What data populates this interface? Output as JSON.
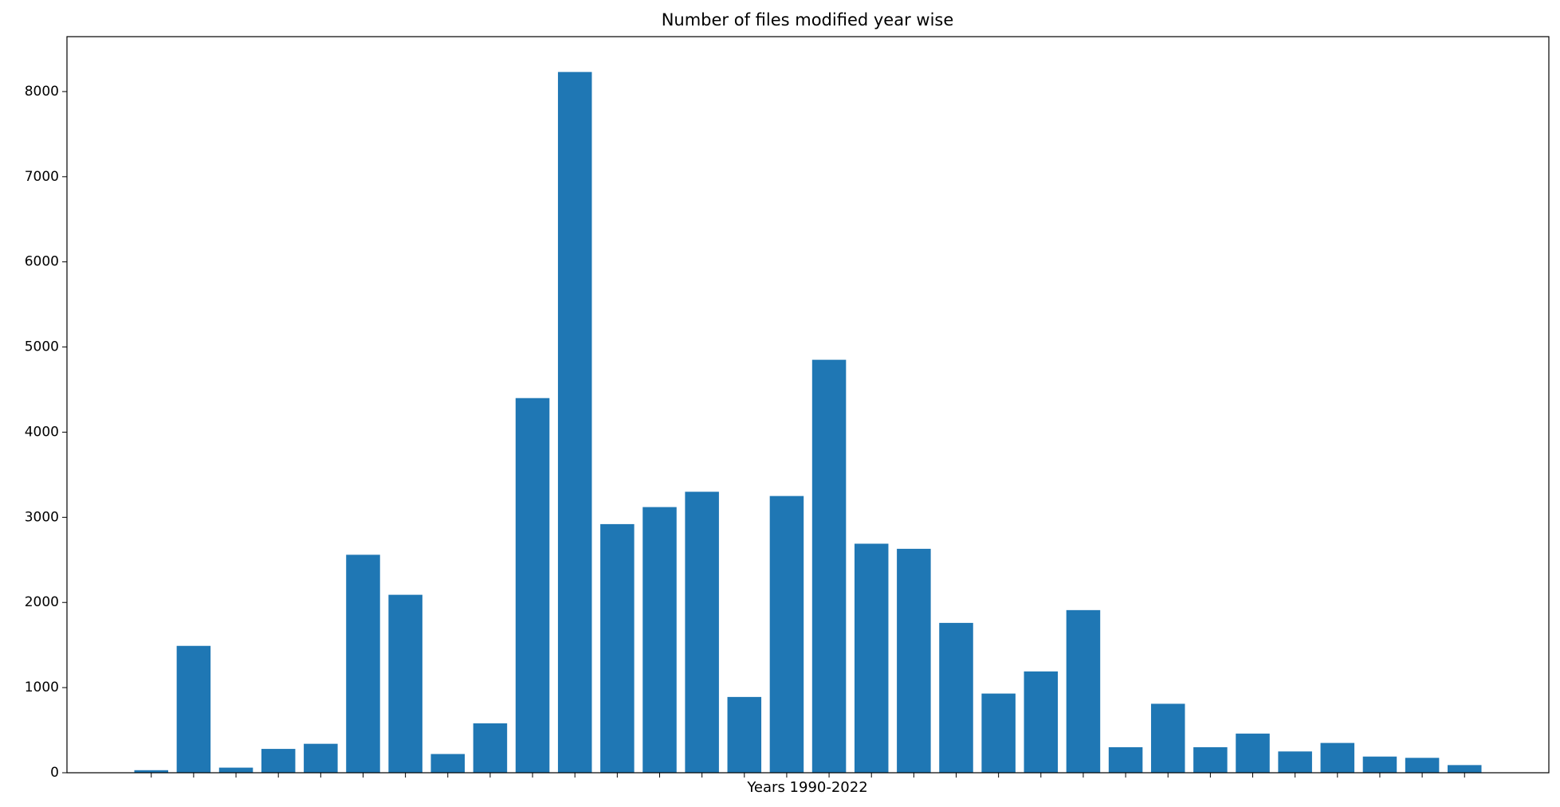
{
  "chart_data": {
    "type": "bar",
    "title": "Number of files modified year wise",
    "x_label": "Years 1990-2022",
    "categories": [
      null,
      null,
      null,
      null,
      null,
      null,
      null,
      null,
      null,
      null,
      null,
      null,
      null,
      null,
      null,
      null,
      null,
      null,
      null,
      null,
      null,
      null,
      null,
      null,
      null,
      null,
      null,
      null,
      null,
      null,
      null,
      null
    ],
    "values": [
      30,
      1490,
      60,
      280,
      340,
      2560,
      2090,
      220,
      580,
      4400,
      8230,
      2920,
      3120,
      3300,
      890,
      3250,
      4850,
      2690,
      2630,
      1760,
      930,
      1190,
      1910,
      300,
      810,
      300,
      460,
      250,
      350,
      190,
      175,
      90
    ],
    "color": "#1f77b4",
    "ylim": [
      0,
      8645
    ],
    "yticks": [
      0,
      1000,
      2000,
      3000,
      4000,
      5000,
      6000,
      7000,
      8000
    ],
    "grid": false
  }
}
